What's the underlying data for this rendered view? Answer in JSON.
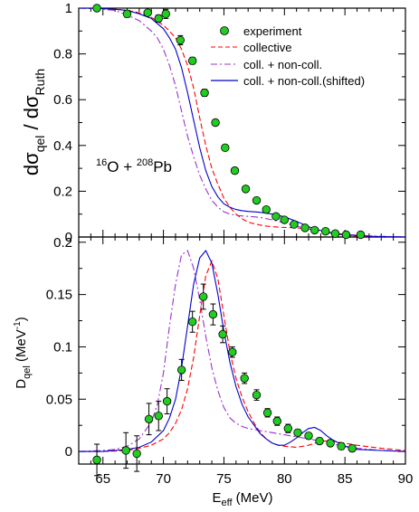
{
  "chart_data": [
    {
      "type": "scatter",
      "panel": "top",
      "system_label": {
        "a1": "16",
        "e1": "O + ",
        "a2": "208",
        "e2": "Pb"
      },
      "ylabel": {
        "main": "dσ",
        "sub1": "qel",
        "mid": " / dσ",
        "sub2": "Ruth"
      },
      "xlim": [
        63,
        90
      ],
      "ylim": [
        0,
        1.0
      ],
      "yticks": [
        0,
        0.2,
        0.4,
        0.6,
        0.8,
        1
      ],
      "ytick_labels": [
        "0",
        "0.2",
        "0.4",
        "0.6",
        "0.8",
        "1"
      ],
      "legend": {
        "position": "top-right",
        "entries": [
          "experiment",
          "collective",
          "coll. + non-coll.",
          "coll. + non-coll.(shifted)"
        ]
      },
      "experiment": {
        "x": [
          64.5,
          67.0,
          68.7,
          69.6,
          70.2,
          71.4,
          72.4,
          73.4,
          74.3,
          75.1,
          75.9,
          76.8,
          77.7,
          78.5,
          79.3,
          80.0,
          80.8,
          81.7,
          82.5,
          83.4,
          84.2,
          85.1,
          86.3
        ],
        "y": [
          1.0,
          0.975,
          0.98,
          0.955,
          0.975,
          0.86,
          0.77,
          0.63,
          0.5,
          0.39,
          0.29,
          0.21,
          0.16,
          0.12,
          0.09,
          0.075,
          0.055,
          0.04,
          0.03,
          0.025,
          0.015,
          0.01,
          0.01
        ],
        "err": [
          0.012,
          0.015,
          0.01,
          0.015,
          0.02,
          0.02,
          0.015,
          0.015,
          0.012,
          0.01,
          0.01,
          0.01,
          0.008,
          0.008,
          0.007,
          0.006,
          0.006,
          0.005,
          0.005,
          0.005,
          0.005,
          0.004,
          0.004
        ]
      },
      "series": [
        {
          "name": "collective",
          "color": "#ff0000",
          "dash": "dashed",
          "x": [
            63,
            64,
            65,
            66,
            67,
            68,
            69,
            70,
            70.5,
            71,
            71.5,
            72,
            72.5,
            73,
            73.5,
            74,
            74.5,
            75,
            75.5,
            76,
            76.5,
            77,
            77.5,
            78,
            78.5,
            79,
            79.5,
            80,
            81,
            82,
            83,
            84,
            85,
            86,
            87,
            88,
            90
          ],
          "y": [
            1.0,
            1.0,
            0.998,
            0.995,
            0.99,
            0.98,
            0.96,
            0.925,
            0.9,
            0.87,
            0.82,
            0.75,
            0.65,
            0.52,
            0.4,
            0.3,
            0.23,
            0.17,
            0.13,
            0.1,
            0.08,
            0.065,
            0.058,
            0.052,
            0.048,
            0.045,
            0.043,
            0.042,
            0.04,
            0.035,
            0.025,
            0.015,
            0.008,
            0.004,
            0.002,
            0.001,
            0
          ]
        },
        {
          "name": "coll. + non-coll.",
          "color": "#9933cc",
          "dash": "dashdot",
          "x": [
            63,
            64,
            65,
            66,
            67,
            68,
            69,
            69.5,
            70,
            70.5,
            71,
            71.5,
            72,
            72.5,
            73,
            73.5,
            74,
            74.5,
            75,
            75.5,
            76,
            76.5,
            77,
            77.5,
            78,
            79,
            80,
            81,
            82,
            83,
            84,
            85,
            86,
            87,
            88,
            90
          ],
          "y": [
            1.0,
            0.998,
            0.995,
            0.99,
            0.97,
            0.945,
            0.9,
            0.87,
            0.82,
            0.75,
            0.66,
            0.55,
            0.44,
            0.35,
            0.27,
            0.21,
            0.16,
            0.13,
            0.11,
            0.1,
            0.095,
            0.092,
            0.09,
            0.088,
            0.085,
            0.075,
            0.062,
            0.048,
            0.035,
            0.025,
            0.017,
            0.012,
            0.008,
            0.005,
            0.003,
            0
          ]
        },
        {
          "name": "coll. + non-coll.(shifted)",
          "color": "#0000cc",
          "dash": "solid",
          "x": [
            63,
            64,
            65,
            66,
            67,
            68,
            69,
            70,
            70.5,
            71,
            71.5,
            72,
            72.5,
            73,
            73.5,
            74,
            74.5,
            75,
            75.5,
            76,
            76.5,
            77,
            77.5,
            78,
            79,
            80,
            81,
            82,
            83,
            84,
            85,
            86,
            87,
            88,
            90
          ],
          "y": [
            1.0,
            1.0,
            0.998,
            0.995,
            0.99,
            0.975,
            0.955,
            0.91,
            0.87,
            0.82,
            0.74,
            0.63,
            0.51,
            0.39,
            0.29,
            0.22,
            0.175,
            0.145,
            0.13,
            0.12,
            0.115,
            0.112,
            0.11,
            0.108,
            0.1,
            0.088,
            0.068,
            0.045,
            0.028,
            0.017,
            0.01,
            0.006,
            0.003,
            0.002,
            0
          ]
        }
      ]
    },
    {
      "type": "scatter",
      "panel": "bottom",
      "xlabel": {
        "main": "E",
        "sub": "eff",
        "rest": " (MeV)"
      },
      "ylabel": {
        "main": "D",
        "sub": "qel",
        "rest": " (MeV",
        "sup": "-1",
        "close": ")"
      },
      "xlim": [
        63,
        90
      ],
      "ylim": [
        -0.012,
        0.205
      ],
      "xticks": [
        65,
        70,
        75,
        80,
        85,
        90
      ],
      "xtick_labels": [
        "65",
        "70",
        "75",
        "80",
        "85",
        "90"
      ],
      "yticks": [
        0,
        0.05,
        0.1,
        0.15,
        0.2
      ],
      "ytick_labels": [
        "0",
        "0.05",
        "0.1",
        "0.15",
        "0.2"
      ],
      "experiment": {
        "x": [
          64.5,
          66.9,
          67.8,
          68.8,
          69.6,
          70.3,
          71.5,
          72.4,
          73.3,
          74.1,
          74.9,
          75.7,
          76.7,
          77.7,
          78.6,
          79.4,
          80.3,
          81.1,
          82.0,
          82.9,
          83.8,
          84.7,
          85.6
        ],
        "y": [
          -0.008,
          0.001,
          -0.002,
          0.031,
          0.034,
          0.048,
          0.078,
          0.124,
          0.148,
          0.131,
          0.112,
          0.095,
          0.07,
          0.054,
          0.037,
          0.029,
          0.022,
          0.018,
          0.015,
          0.01,
          0.008,
          0.005,
          0.003
        ],
        "err": [
          0.015,
          0.017,
          0.017,
          0.015,
          0.014,
          0.012,
          0.01,
          0.01,
          0.012,
          0.01,
          0.008,
          0.005,
          0.005,
          0.005,
          0.004,
          0.004,
          0.004,
          0.003,
          0.003,
          0.003,
          0.003,
          0.003,
          0.003
        ]
      },
      "series": [
        {
          "name": "collective",
          "color": "#ff0000",
          "dash": "dashed",
          "x": [
            63,
            65,
            67,
            68,
            69,
            70,
            70.5,
            71,
            71.5,
            72,
            72.5,
            73,
            73.5,
            74,
            74.5,
            75,
            75.5,
            76,
            76.5,
            77,
            77.5,
            78,
            78.5,
            79,
            79.5,
            80,
            81,
            82,
            83,
            84,
            85,
            86,
            88,
            90
          ],
          "y": [
            0,
            0,
            0.001,
            0.003,
            0.006,
            0.012,
            0.018,
            0.027,
            0.04,
            0.06,
            0.09,
            0.13,
            0.168,
            0.182,
            0.165,
            0.13,
            0.095,
            0.07,
            0.052,
            0.038,
            0.027,
            0.018,
            0.012,
            0.008,
            0.006,
            0.005,
            0.004,
            0.006,
            0.01,
            0.01,
            0.008,
            0.006,
            0.003,
            0.001
          ]
        },
        {
          "name": "coll. + non-coll.",
          "color": "#9933cc",
          "dash": "dashdot",
          "x": [
            63,
            65,
            66,
            67,
            68,
            69,
            69.5,
            70,
            70.5,
            71,
            71.5,
            72,
            72.5,
            73,
            73.5,
            74,
            74.5,
            75,
            75.5,
            76,
            76.5,
            77,
            78,
            79,
            80,
            81,
            82,
            83,
            84,
            85,
            86,
            88,
            90
          ],
          "y": [
            0,
            0.001,
            0.002,
            0.005,
            0.012,
            0.028,
            0.045,
            0.075,
            0.12,
            0.16,
            0.188,
            0.192,
            0.175,
            0.145,
            0.11,
            0.08,
            0.058,
            0.042,
            0.032,
            0.027,
            0.024,
            0.022,
            0.02,
            0.018,
            0.016,
            0.014,
            0.012,
            0.01,
            0.007,
            0.005,
            0.003,
            0.001,
            0
          ]
        },
        {
          "name": "coll. + non-coll.(shifted)",
          "color": "#0000cc",
          "dash": "solid",
          "x": [
            63,
            65,
            66,
            67,
            68,
            69,
            70,
            70.5,
            71,
            71.5,
            72,
            72.5,
            73,
            73.5,
            74,
            74.5,
            75,
            75.5,
            76,
            76.5,
            77,
            77.5,
            78,
            78.5,
            79,
            79.5,
            80,
            80.5,
            81,
            81.5,
            82,
            82.5,
            83,
            83.5,
            84,
            85,
            86,
            88,
            90
          ],
          "y": [
            0,
            0,
            0.001,
            0.002,
            0.004,
            0.009,
            0.02,
            0.032,
            0.05,
            0.08,
            0.12,
            0.16,
            0.185,
            0.192,
            0.18,
            0.15,
            0.115,
            0.085,
            0.062,
            0.045,
            0.033,
            0.025,
            0.017,
            0.012,
            0.008,
            0.006,
            0.006,
            0.009,
            0.013,
            0.018,
            0.022,
            0.023,
            0.02,
            0.015,
            0.011,
            0.005,
            0.002,
            0.001,
            0
          ]
        }
      ]
    }
  ]
}
